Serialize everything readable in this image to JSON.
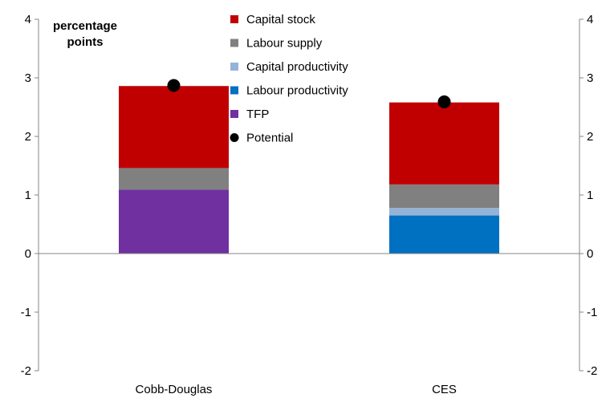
{
  "chart_data": {
    "type": "bar",
    "stacked": true,
    "unit_label_line1": "percentage",
    "unit_label_line2": "points",
    "categories": [
      "Cobb-Douglas",
      "CES"
    ],
    "series": [
      {
        "name": "Capital stock",
        "color": "#c00000",
        "values": [
          1.4,
          1.4
        ]
      },
      {
        "name": "Labour supply",
        "color": "#808080",
        "values": [
          0.37,
          0.4
        ]
      },
      {
        "name": "Capital productivity",
        "color": "#95b3d7",
        "values": [
          0.0,
          0.13
        ]
      },
      {
        "name": "Labour productivity",
        "color": "#0070c0",
        "values": [
          0.0,
          0.65
        ]
      },
      {
        "name": "TFP",
        "color": "#7030a0",
        "values": [
          1.09,
          0.0
        ]
      }
    ],
    "potential": {
      "name": "Potential",
      "color": "#000000",
      "values": [
        2.87,
        2.59
      ]
    },
    "ylim": [
      -2,
      4
    ],
    "yticks": [
      "-2",
      "-1",
      "0",
      "1",
      "2",
      "3",
      "4"
    ],
    "grid": false,
    "legend_position": "top-center"
  }
}
